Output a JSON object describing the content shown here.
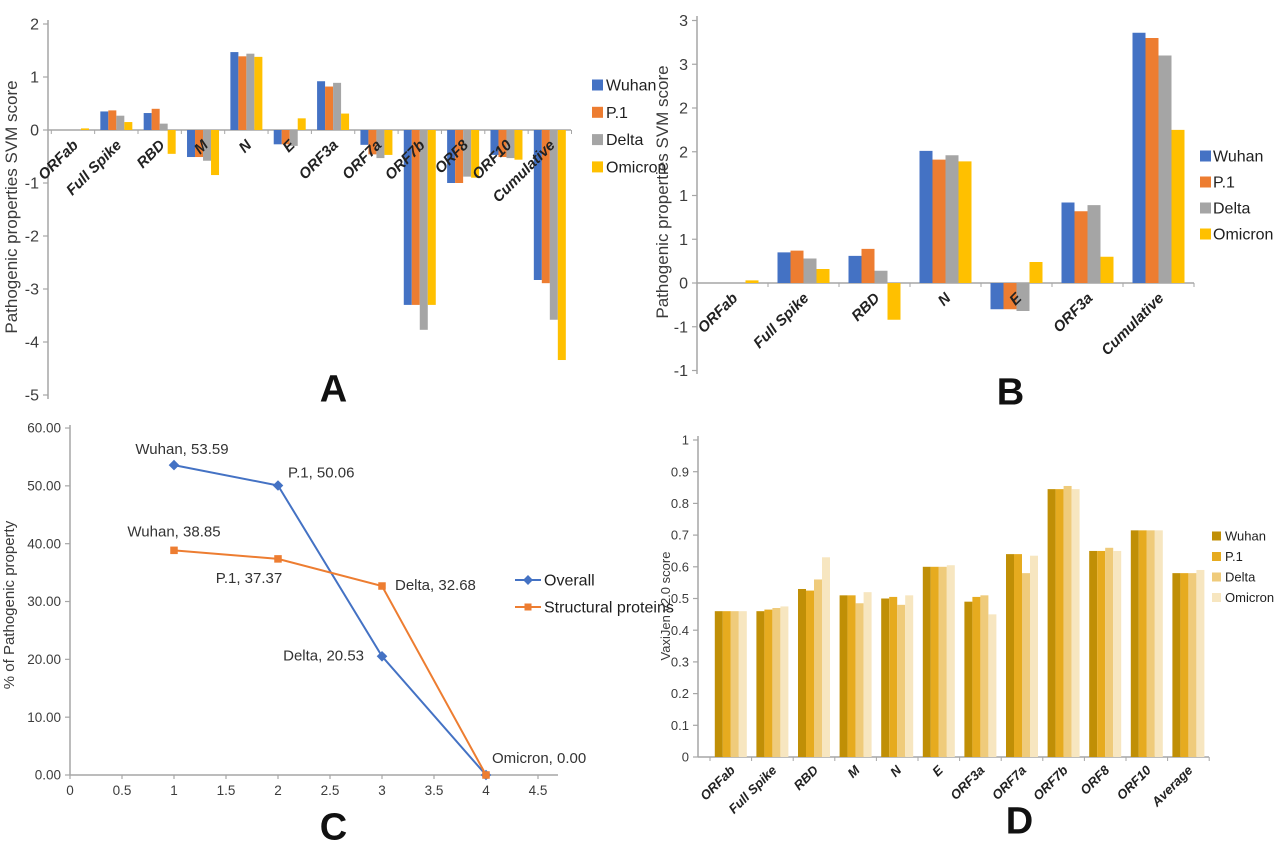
{
  "figure_title": "",
  "palette": {
    "wuhan_blue": "#4472C4",
    "p1_orange": "#ED7D31",
    "delta_gray": "#A5A5A5",
    "omicron_yellow": "#FFC000",
    "gold_dark": "#C08F06",
    "gold_mid": "#E6AB1F",
    "gold_light": "#EFCB7B",
    "gold_pale": "#F7E6C0",
    "axis_gray": "#a6a6a6",
    "tick_text": "#3c3c3c"
  },
  "chart_data": [
    {
      "id": "A",
      "panel_label": "A",
      "type": "bar",
      "ylabel": "Pathogenic properties SVM score",
      "ylim": [
        -5,
        2
      ],
      "grid": false,
      "legend_position": "right",
      "yticks": [
        {
          "v": 2,
          "label": "2"
        },
        {
          "v": 1,
          "label": "1"
        },
        {
          "v": 0,
          "label": "0"
        },
        {
          "v": -1,
          "label": "-1"
        },
        {
          "v": -2,
          "label": "-2"
        },
        {
          "v": -3,
          "label": "-3"
        },
        {
          "v": -4,
          "label": "-4"
        },
        {
          "v": -5,
          "label": "-5"
        }
      ],
      "categories": [
        "ORFab",
        "Full Spike",
        "RBD",
        "M",
        "N",
        "E",
        "ORF3a",
        "ORF7a",
        "ORF7b",
        "ORF8",
        "ORF10",
        "Cumulative"
      ],
      "series": [
        {
          "name": "Wuhan",
          "color": "#4472C4",
          "values": [
            0,
            0.35,
            0.32,
            -0.51,
            1.47,
            -0.27,
            0.92,
            -0.28,
            -3.3,
            -1.0,
            -0.47,
            -2.83
          ]
        },
        {
          "name": "P.1",
          "color": "#ED7D31",
          "values": [
            0,
            0.37,
            0.4,
            -0.51,
            1.39,
            -0.27,
            0.82,
            -0.46,
            -3.3,
            -1.0,
            -0.51,
            -2.89
          ]
        },
        {
          "name": "Delta",
          "color": "#A5A5A5",
          "values": [
            0,
            0.27,
            0.12,
            -0.58,
            1.44,
            -0.3,
            0.89,
            -0.53,
            -3.77,
            -0.88,
            -0.53,
            -3.58
          ]
        },
        {
          "name": "Omicron",
          "color": "#FFC000",
          "values": [
            0.03,
            0.15,
            -0.45,
            -0.85,
            1.38,
            0.22,
            0.31,
            -0.47,
            -3.3,
            -0.9,
            -0.56,
            -4.34
          ]
        }
      ]
    },
    {
      "id": "B",
      "panel_label": "B",
      "type": "bar",
      "ylabel": "Pathogenic properties SVM score",
      "ylim": [
        -1,
        3
      ],
      "grid": false,
      "legend_position": "right",
      "yticks": [
        {
          "v": 3,
          "label": "3"
        },
        {
          "v": 2.5,
          "label": "3"
        },
        {
          "v": 2,
          "label": "2"
        },
        {
          "v": 1.5,
          "label": "2"
        },
        {
          "v": 1,
          "label": "1"
        },
        {
          "v": 0.5,
          "label": "1"
        },
        {
          "v": 0,
          "label": "0"
        },
        {
          "v": -0.5,
          "label": "-1"
        },
        {
          "v": -1,
          "label": "-1"
        }
      ],
      "categories": [
        "ORFab",
        "Full Spike",
        "RBD",
        "N",
        "E",
        "ORF3a",
        "Cumulative"
      ],
      "series": [
        {
          "name": "Wuhan",
          "color": "#4472C4",
          "values": [
            0,
            0.35,
            0.31,
            1.51,
            -0.3,
            0.92,
            2.86
          ]
        },
        {
          "name": "P.1",
          "color": "#ED7D31",
          "values": [
            0,
            0.37,
            0.39,
            1.41,
            -0.3,
            0.82,
            2.8
          ]
        },
        {
          "name": "Delta",
          "color": "#A5A5A5",
          "values": [
            0,
            0.28,
            0.14,
            1.46,
            -0.32,
            0.89,
            2.6
          ]
        },
        {
          "name": "Omicron",
          "color": "#FFC000",
          "values": [
            0.03,
            0.16,
            -0.42,
            1.39,
            0.24,
            0.3,
            1.75
          ]
        }
      ]
    },
    {
      "id": "C",
      "panel_label": "C",
      "type": "line",
      "ylabel": "% of Pathogenic property",
      "xlim": [
        0,
        4.5
      ],
      "ylim": [
        0,
        60
      ],
      "grid": false,
      "legend_position": "right",
      "xticks": [
        {
          "v": 0,
          "label": "0"
        },
        {
          "v": 0.5,
          "label": "0.5"
        },
        {
          "v": 1,
          "label": "1"
        },
        {
          "v": 1.5,
          "label": "1.5"
        },
        {
          "v": 2,
          "label": "2"
        },
        {
          "v": 2.5,
          "label": "2.5"
        },
        {
          "v": 3,
          "label": "3"
        },
        {
          "v": 3.5,
          "label": "3.5"
        },
        {
          "v": 4,
          "label": "4"
        },
        {
          "v": 4.5,
          "label": "4.5"
        }
      ],
      "yticks": [
        {
          "v": 60,
          "label": "60.00"
        },
        {
          "v": 50,
          "label": "50.00"
        },
        {
          "v": 40,
          "label": "40.00"
        },
        {
          "v": 30,
          "label": "30.00"
        },
        {
          "v": 20,
          "label": "20.00"
        },
        {
          "v": 10,
          "label": "10.00"
        },
        {
          "v": 0,
          "label": "0.00"
        }
      ],
      "series": [
        {
          "name": "Overall",
          "color": "#4472C4",
          "marker": "diamond",
          "points": [
            {
              "x": 1,
              "y": 53.59,
              "label": "Wuhan, 53.59",
              "anchor": "middle",
              "dx": 8,
              "dy": -11
            },
            {
              "x": 2,
              "y": 50.06,
              "label": "P.1, 50.06",
              "anchor": "start",
              "dx": 10,
              "dy": -8
            },
            {
              "x": 3,
              "y": 20.53,
              "label": "Delta, 20.53",
              "anchor": "end",
              "dx": -18,
              "dy": 4
            },
            {
              "x": 4,
              "y": 0.0,
              "label": "Omicron, 0.00",
              "anchor": "start",
              "dx": 6,
              "dy": -12
            }
          ]
        },
        {
          "name": "Structural proteins",
          "color": "#ED7D31",
          "marker": "square",
          "points": [
            {
              "x": 1,
              "y": 38.85,
              "label": "Wuhan, 38.85",
              "anchor": "middle",
              "dx": 0,
              "dy": -14
            },
            {
              "x": 2,
              "y": 37.37,
              "label": "P.1, 37.37",
              "anchor": "middle",
              "dx": -29,
              "dy": 24
            },
            {
              "x": 3,
              "y": 32.68,
              "label": "Delta, 32.68",
              "anchor": "start",
              "dx": 13,
              "dy": 4
            },
            {
              "x": 4,
              "y": 0.0,
              "label": "",
              "anchor": "start",
              "dx": 0,
              "dy": 0
            }
          ]
        }
      ]
    },
    {
      "id": "D",
      "panel_label": "D",
      "type": "bar",
      "ylabel": "VaxiJen v2.0 score",
      "ylim": [
        0,
        1
      ],
      "grid": false,
      "legend_position": "right",
      "yticks": [
        {
          "v": 1,
          "label": "1"
        },
        {
          "v": 0.9,
          "label": "0.9"
        },
        {
          "v": 0.8,
          "label": "0.8"
        },
        {
          "v": 0.7,
          "label": "0.7"
        },
        {
          "v": 0.6,
          "label": "0.6"
        },
        {
          "v": 0.5,
          "label": "0.5"
        },
        {
          "v": 0.4,
          "label": "0.4"
        },
        {
          "v": 0.3,
          "label": "0.3"
        },
        {
          "v": 0.2,
          "label": "0.2"
        },
        {
          "v": 0.1,
          "label": "0.1"
        },
        {
          "v": 0,
          "label": "0"
        }
      ],
      "categories": [
        "ORFab",
        "Full Spike",
        "RBD",
        "M",
        "N",
        "E",
        "ORF3a",
        "ORF7a",
        "ORF7b",
        "ORF8",
        "ORF10",
        "Average"
      ],
      "series": [
        {
          "name": "Wuhan",
          "color": "#C08F06",
          "values": [
            0.46,
            0.46,
            0.53,
            0.51,
            0.5,
            0.6,
            0.49,
            0.64,
            0.845,
            0.65,
            0.715,
            0.58
          ]
        },
        {
          "name": "P.1",
          "color": "#E6AB1F",
          "values": [
            0.46,
            0.465,
            0.525,
            0.51,
            0.505,
            0.6,
            0.505,
            0.64,
            0.845,
            0.65,
            0.715,
            0.58
          ]
        },
        {
          "name": "Delta",
          "color": "#EFCB7B",
          "values": [
            0.46,
            0.47,
            0.56,
            0.485,
            0.48,
            0.6,
            0.51,
            0.58,
            0.855,
            0.66,
            0.715,
            0.58
          ]
        },
        {
          "name": "Omicron",
          "color": "#F7E6C0",
          "values": [
            0.46,
            0.475,
            0.63,
            0.52,
            0.51,
            0.605,
            0.45,
            0.635,
            0.845,
            0.65,
            0.715,
            0.59
          ]
        }
      ]
    }
  ]
}
